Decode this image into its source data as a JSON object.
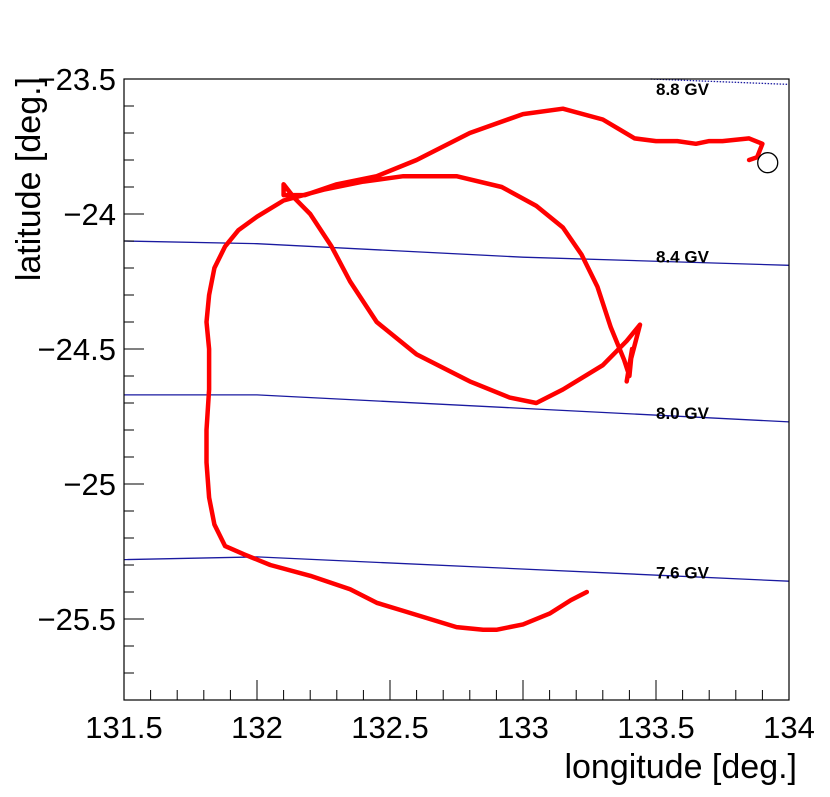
{
  "chart_data": {
    "type": "line",
    "xlabel": "longitude [deg.]",
    "ylabel": "latitude [deg.]",
    "xlim": [
      131.5,
      134.0
    ],
    "ylim": [
      -25.8,
      -23.5
    ],
    "x_ticks": [
      {
        "value": 131.5,
        "label": "131.5"
      },
      {
        "value": 132.0,
        "label": "132"
      },
      {
        "value": 132.5,
        "label": "132.5"
      },
      {
        "value": 133.0,
        "label": "133"
      },
      {
        "value": 133.5,
        "label": "133.5"
      },
      {
        "value": 134.0,
        "label": "134"
      }
    ],
    "y_ticks": [
      {
        "value": -23.5,
        "label": "−23.5"
      },
      {
        "value": -24.0,
        "label": "−24"
      },
      {
        "value": -24.5,
        "label": "−24.5"
      },
      {
        "value": -25.0,
        "label": "−25"
      },
      {
        "value": -25.5,
        "label": "−25.5"
      }
    ],
    "grid": false,
    "contours": [
      {
        "label": "8.8 GV",
        "label_pos": [
          133.5,
          -23.56
        ],
        "x": [
          133.48,
          134.0
        ],
        "y": [
          -23.5,
          -23.52
        ],
        "color": "#1a1aa0",
        "dotted": true
      },
      {
        "label": "8.4 GV",
        "label_pos": [
          133.5,
          -24.18
        ],
        "x": [
          131.5,
          132.0,
          133.0,
          134.0
        ],
        "y": [
          -24.1,
          -24.11,
          -24.16,
          -24.19
        ],
        "color": "#1a1aa0",
        "dotted": false
      },
      {
        "label": "8.0 GV",
        "label_pos": [
          133.5,
          -24.76
        ],
        "x": [
          131.5,
          132.0,
          134.0
        ],
        "y": [
          -24.67,
          -24.67,
          -24.77
        ],
        "color": "#1a1aa0",
        "dotted": false
      },
      {
        "label": "7.6 GV",
        "label_pos": [
          133.5,
          -25.35
        ],
        "x": [
          131.5,
          132.0,
          134.0
        ],
        "y": [
          -25.28,
          -25.27,
          -25.36
        ],
        "color": "#1a1aa0",
        "dotted": false
      }
    ],
    "series": [
      {
        "color": "#ff0000",
        "x": [
          133.24,
          133.18,
          133.1,
          133.0,
          132.9,
          132.85,
          132.75,
          132.65,
          132.55,
          132.45,
          132.35,
          132.2,
          132.05,
          131.95,
          131.88,
          131.84,
          131.82,
          131.81,
          131.81,
          131.82,
          131.82,
          131.81,
          131.82,
          131.84,
          131.88,
          131.93,
          132.0,
          132.1,
          132.25,
          132.4,
          132.55,
          132.75,
          132.92,
          133.05,
          133.15,
          133.22,
          133.28,
          133.33,
          133.38,
          133.4,
          133.41,
          133.39,
          133.4,
          133.44,
          133.39,
          133.3,
          133.15,
          133.05,
          132.95,
          132.8,
          132.6,
          132.45,
          132.35,
          132.28,
          132.2,
          132.14,
          132.1,
          132.1,
          132.18,
          132.3,
          132.45,
          132.6,
          132.8,
          133.0,
          133.15,
          133.3,
          133.42,
          133.5,
          133.58,
          133.65,
          133.7,
          133.75,
          133.85,
          133.9,
          133.88,
          133.85,
          133.88
        ],
        "y": [
          -25.4,
          -25.43,
          -25.48,
          -25.52,
          -25.54,
          -25.54,
          -25.53,
          -25.5,
          -25.47,
          -25.44,
          -25.39,
          -25.34,
          -25.3,
          -25.26,
          -25.23,
          -25.15,
          -25.05,
          -24.92,
          -24.8,
          -24.65,
          -24.5,
          -24.4,
          -24.3,
          -24.2,
          -24.12,
          -24.06,
          -24.01,
          -23.95,
          -23.91,
          -23.88,
          -23.86,
          -23.86,
          -23.9,
          -23.97,
          -24.05,
          -24.15,
          -24.27,
          -24.42,
          -24.54,
          -24.6,
          -24.5,
          -24.62,
          -24.56,
          -24.41,
          -24.47,
          -24.56,
          -24.65,
          -24.7,
          -24.68,
          -24.62,
          -24.52,
          -24.4,
          -24.25,
          -24.12,
          -24.0,
          -23.94,
          -23.89,
          -23.93,
          -23.93,
          -23.89,
          -23.86,
          -23.8,
          -23.7,
          -23.63,
          -23.61,
          -23.65,
          -23.72,
          -23.73,
          -23.73,
          -23.74,
          -23.73,
          -23.73,
          -23.72,
          -23.74,
          -23.79,
          -23.8,
          -23.79
        ]
      }
    ],
    "marker": {
      "type": "open-circle",
      "x": 133.92,
      "y": -23.81
    }
  }
}
